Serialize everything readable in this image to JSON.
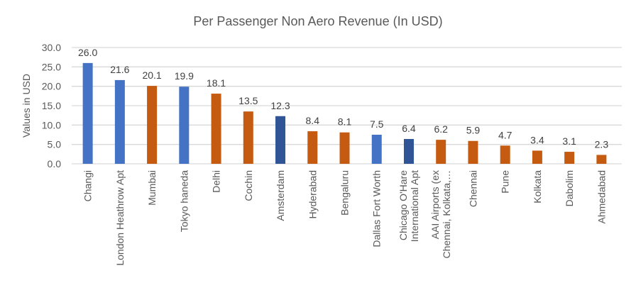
{
  "chart_data": {
    "type": "bar",
    "title": "Per Passenger Non Aero Revenue (In USD)",
    "xlabel": "",
    "ylabel": "Values in USD",
    "ylim": [
      0,
      30
    ],
    "yticks": [
      "0.0",
      "5.0",
      "10.0",
      "15.0",
      "20.0",
      "25.0",
      "30.0"
    ],
    "grid": true,
    "legend": "none",
    "categories": [
      [
        "Changi"
      ],
      [
        "London Heathrow Apt"
      ],
      [
        "Mumbai"
      ],
      [
        "Tokyo haneda"
      ],
      [
        "Delhi"
      ],
      [
        "Cochin"
      ],
      [
        "Amsterdam"
      ],
      [
        "Hyderabad"
      ],
      [
        "Bengaluru"
      ],
      [
        "Dallas Fort Worth"
      ],
      [
        "Chicago O'Hare",
        "International Apt"
      ],
      [
        "AAI Airports (ex",
        "Chennai, Kolkata,…"
      ],
      [
        "Chennai"
      ],
      [
        "Pune"
      ],
      [
        "Kolkata"
      ],
      [
        "Dabolim"
      ],
      [
        "Ahmedabad"
      ]
    ],
    "values": [
      26.0,
      21.6,
      20.1,
      19.9,
      18.1,
      13.5,
      12.3,
      8.4,
      8.1,
      7.5,
      6.4,
      6.2,
      5.9,
      4.7,
      3.4,
      3.1,
      2.3
    ],
    "data_labels": [
      "26.0",
      "21.6",
      "20.1",
      "19.9",
      "18.1",
      "13.5",
      "12.3",
      "8.4",
      "8.1",
      "7.5",
      "6.4",
      "6.2",
      "5.9",
      "4.7",
      "3.4",
      "3.1",
      "2.3"
    ],
    "bar_colors": [
      "#4472c4",
      "#4472c4",
      "#c55a11",
      "#4472c4",
      "#c55a11",
      "#c55a11",
      "#2f5597",
      "#c55a11",
      "#c55a11",
      "#4472c4",
      "#2f5597",
      "#c55a11",
      "#c55a11",
      "#c55a11",
      "#c55a11",
      "#c55a11",
      "#c55a11"
    ]
  }
}
